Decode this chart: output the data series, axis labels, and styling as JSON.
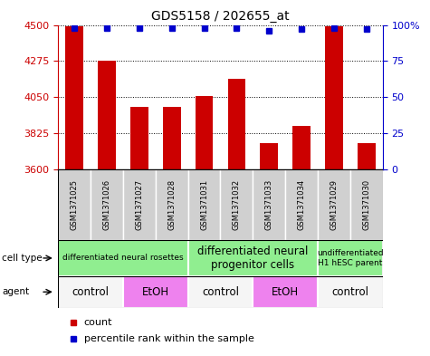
{
  "title": "GDS5158 / 202655_at",
  "samples": [
    "GSM1371025",
    "GSM1371026",
    "GSM1371027",
    "GSM1371028",
    "GSM1371031",
    "GSM1371032",
    "GSM1371033",
    "GSM1371034",
    "GSM1371029",
    "GSM1371030"
  ],
  "counts": [
    4490,
    4275,
    3990,
    3990,
    4055,
    4165,
    3760,
    3870,
    4490,
    3760
  ],
  "percentiles": [
    98,
    98,
    98,
    98,
    98,
    98,
    96,
    97,
    98,
    97
  ],
  "ymin": 3600,
  "ymax": 4500,
  "yticks": [
    3600,
    3825,
    4050,
    4275,
    4500
  ],
  "ytick_labels": [
    "3600",
    "3825",
    "4050",
    "4275",
    "4500"
  ],
  "right_yticks": [
    0,
    25,
    50,
    75,
    100
  ],
  "right_ytick_labels": [
    "0",
    "25",
    "50",
    "75",
    "100%"
  ],
  "bar_color": "#cc0000",
  "dot_color": "#0000cc",
  "cell_type_groups": [
    {
      "label": "differentiated neural rosettes",
      "start": 0,
      "end": 4,
      "fontsize": 6.5
    },
    {
      "label": "differentiated neural\nprogenitor cells",
      "start": 4,
      "end": 8,
      "fontsize": 8.5
    },
    {
      "label": "undifferentiated\nH1 hESC parent",
      "start": 8,
      "end": 10,
      "fontsize": 6.5
    }
  ],
  "agent_groups": [
    {
      "label": "control",
      "start": 0,
      "end": 2,
      "color": "#f5f5f5"
    },
    {
      "label": "EtOH",
      "start": 2,
      "end": 4,
      "color": "#ee82ee"
    },
    {
      "label": "control",
      "start": 4,
      "end": 6,
      "color": "#f5f5f5"
    },
    {
      "label": "EtOH",
      "start": 6,
      "end": 8,
      "color": "#ee82ee"
    },
    {
      "label": "control",
      "start": 8,
      "end": 10,
      "color": "#f5f5f5"
    }
  ],
  "cell_type_color": "#90ee90",
  "sample_box_color": "#d0d0d0",
  "bar_width": 0.55,
  "legend_count_label": "count",
  "legend_pct_label": "percentile rank within the sample"
}
